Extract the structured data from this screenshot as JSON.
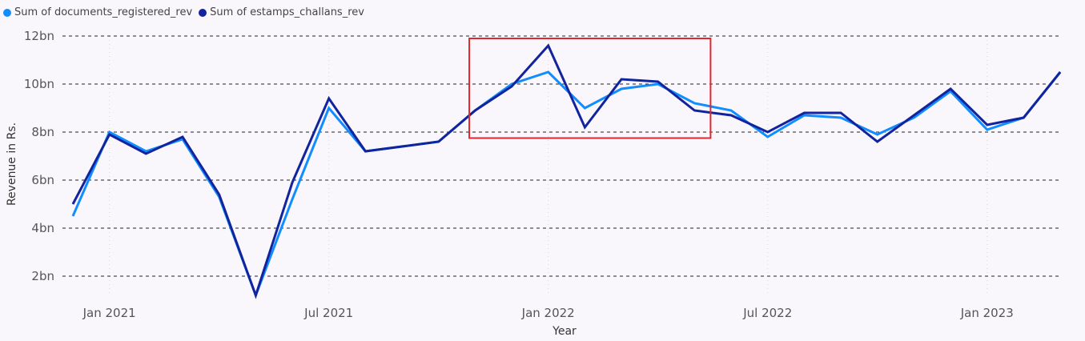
{
  "chart_data": {
    "type": "line",
    "xlabel": "Year",
    "ylabel": "Revenue in Rs.",
    "ylim": [
      1000000000,
      12000000000
    ],
    "y_ticks": [
      {
        "value": 2000000000,
        "label": "2bn"
      },
      {
        "value": 4000000000,
        "label": "4bn"
      },
      {
        "value": 6000000000,
        "label": "6bn"
      },
      {
        "value": 8000000000,
        "label": "8bn"
      },
      {
        "value": 10000000000,
        "label": "10bn"
      },
      {
        "value": 12000000000,
        "label": "12bn"
      }
    ],
    "x_ticks": [
      {
        "date": "2021-01-01",
        "label": "Jan 2021"
      },
      {
        "date": "2021-07-01",
        "label": "Jul 2021"
      },
      {
        "date": "2022-01-01",
        "label": "Jan 2022"
      },
      {
        "date": "2022-07-01",
        "label": "Jul 2022"
      },
      {
        "date": "2023-01-01",
        "label": "Jan 2023"
      }
    ],
    "x": [
      "2020-12",
      "2021-01",
      "2021-02",
      "2021-03",
      "2021-04",
      "2021-05",
      "2021-06",
      "2021-07",
      "2021-08",
      "2021-09",
      "2021-10",
      "2021-11",
      "2021-12",
      "2022-01",
      "2022-02",
      "2022-03",
      "2022-04",
      "2022-05",
      "2022-06",
      "2022-07",
      "2022-08",
      "2022-09",
      "2022-10",
      "2022-11",
      "2022-12",
      "2023-01",
      "2023-02",
      "2023-03"
    ],
    "series": [
      {
        "name": "Sum of documents_registered_rev",
        "color": "#118dff",
        "values": [
          4.5,
          8.0,
          7.2,
          7.7,
          5.3,
          1.2,
          5.2,
          9.0,
          7.2,
          7.4,
          7.6,
          8.9,
          10.0,
          10.5,
          9.0,
          9.8,
          10.0,
          9.2,
          8.9,
          7.8,
          8.7,
          8.6,
          7.9,
          8.6,
          9.7,
          8.1,
          8.6,
          10.5
        ]
      },
      {
        "name": "Sum of estamps_challans_rev",
        "color": "#12239e",
        "values": [
          5.0,
          7.9,
          7.1,
          7.8,
          5.4,
          1.2,
          5.9,
          9.4,
          7.2,
          7.4,
          7.6,
          8.9,
          9.9,
          11.6,
          8.2,
          10.2,
          10.1,
          8.9,
          8.7,
          8.0,
          8.8,
          8.8,
          7.6,
          8.7,
          9.8,
          8.3,
          8.6,
          10.5
        ]
      }
    ],
    "grid": "horizontal dashed",
    "legend_position": "top-left",
    "highlight_box": {
      "from": "2021-12",
      "to": "2022-05",
      "y_from": 7.75,
      "y_to": 11.9,
      "color": "#e0282e"
    }
  }
}
